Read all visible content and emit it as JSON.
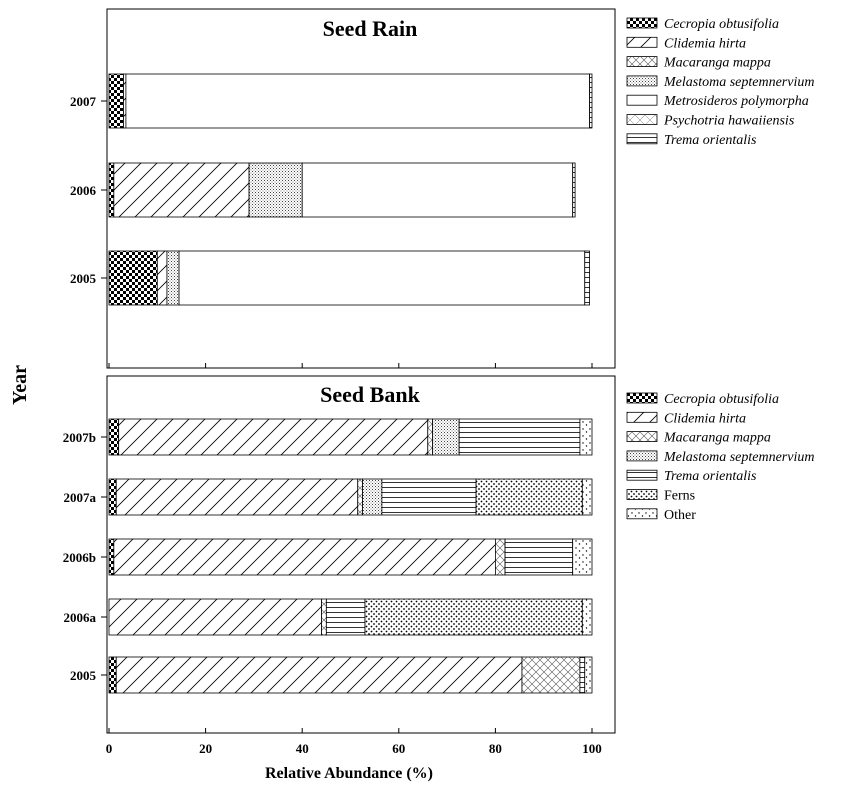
{
  "chart_data": [
    {
      "type": "bar",
      "orientation": "horizontal",
      "stacked": true,
      "title": "Seed Rain",
      "ylabel": "Year",
      "categories": [
        "2007",
        "2006",
        "2005"
      ],
      "xlim": [
        0,
        100
      ],
      "series": [
        {
          "name": "Cecropia obtusifolia",
          "pattern": "checker",
          "values": [
            3,
            1,
            10
          ]
        },
        {
          "name": "Clidemia hirta",
          "pattern": "diagonal",
          "values": [
            0.5,
            28,
            2
          ]
        },
        {
          "name": "Macaranga mappa",
          "pattern": "crosshatch",
          "values": [
            0,
            0,
            0
          ]
        },
        {
          "name": "Melastoma septemnervium",
          "pattern": "fine-dots",
          "values": [
            0,
            11,
            2.5
          ]
        },
        {
          "name": "Metrosideros polymorpha",
          "pattern": "blank",
          "values": [
            96,
            56,
            84
          ]
        },
        {
          "name": "Psychotria hawaiiensis",
          "pattern": "crosshatch-light",
          "values": [
            0,
            0,
            0
          ]
        },
        {
          "name": "Trema orientalis",
          "pattern": "horizontal",
          "values": [
            0.5,
            0.5,
            1
          ]
        }
      ],
      "legend_position": "right"
    },
    {
      "type": "bar",
      "orientation": "horizontal",
      "stacked": true,
      "title": "Seed Bank",
      "xlabel": "Relative Abundance (%)",
      "categories": [
        "2007b",
        "2007a",
        "2006b",
        "2006a",
        "2005"
      ],
      "xlim": [
        0,
        100
      ],
      "xticks": [
        "0",
        "20",
        "40",
        "60",
        "80",
        "100"
      ],
      "series": [
        {
          "name": "Cecropia obtusifolia",
          "pattern": "checker",
          "values": [
            2,
            1.5,
            1,
            0,
            1.5
          ]
        },
        {
          "name": "Clidemia hirta",
          "pattern": "diagonal",
          "values": [
            64,
            50,
            79,
            44,
            84
          ]
        },
        {
          "name": "Macaranga mappa",
          "pattern": "crosshatch",
          "values": [
            1,
            1,
            2,
            1,
            12
          ]
        },
        {
          "name": "Melastoma septemnervium",
          "pattern": "fine-dots",
          "values": [
            5.5,
            4,
            0,
            0,
            0
          ]
        },
        {
          "name": "Trema orientalis",
          "pattern": "horizontal",
          "values": [
            25,
            19.5,
            14,
            8,
            1
          ]
        },
        {
          "name": "Ferns",
          "pattern": "coarse-dots",
          "values": [
            0,
            22,
            0,
            45,
            0
          ]
        },
        {
          "name": "Other",
          "pattern": "sparse-dots",
          "values": [
            2.5,
            2,
            4,
            2,
            1.5
          ]
        }
      ],
      "legend_position": "right"
    }
  ]
}
